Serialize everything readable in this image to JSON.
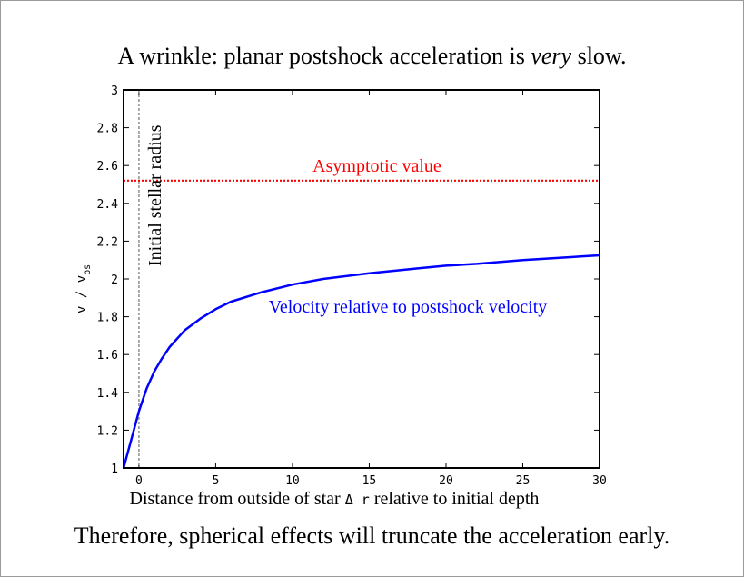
{
  "slide": {
    "title_pre": "A wrinkle: planar postshock acceleration is ",
    "title_emph": "very",
    "title_post": " slow.",
    "footer": "Therefore, spherical effects will truncate the acceleration early."
  },
  "chart_data": {
    "type": "line",
    "title": "",
    "xlabel": {
      "pre": "Distance from outside of star ",
      "symbol": "Δ r",
      "post": " relative to initial depth"
    },
    "ylabel": {
      "main": "v / v",
      "sub": "ps"
    },
    "xlim": [
      -1,
      30
    ],
    "ylim": [
      1,
      3
    ],
    "xticks": [
      "0",
      "5",
      "10",
      "15",
      "20",
      "25",
      "30"
    ],
    "yticks": [
      "1",
      "1.2",
      "1.4",
      "1.6",
      "1.8",
      "2",
      "2.2",
      "2.4",
      "2.6",
      "2.8",
      "3"
    ],
    "grid": false,
    "series": [
      {
        "name": "Velocity relative to postshock velocity",
        "color": "#0000ff",
        "style": "solid",
        "x": [
          -1,
          -0.5,
          0,
          0.5,
          1,
          1.5,
          2,
          3,
          4,
          5,
          6,
          8,
          10,
          12,
          15,
          18,
          20,
          22,
          25,
          28,
          30
        ],
        "y": [
          1.0,
          1.15,
          1.3,
          1.42,
          1.51,
          1.58,
          1.64,
          1.73,
          1.79,
          1.84,
          1.88,
          1.93,
          1.97,
          2.0,
          2.03,
          2.055,
          2.07,
          2.08,
          2.1,
          2.115,
          2.125
        ]
      },
      {
        "name": "Asymptotic value",
        "color": "#ff0000",
        "style": "dotted",
        "x": [
          -1,
          30
        ],
        "y": [
          2.52,
          2.52
        ]
      }
    ],
    "annotations": [
      {
        "text": "Initial stellar radius",
        "x": 0,
        "orientation": "vertical",
        "color": "#000000",
        "line_color": "#909090"
      }
    ]
  }
}
